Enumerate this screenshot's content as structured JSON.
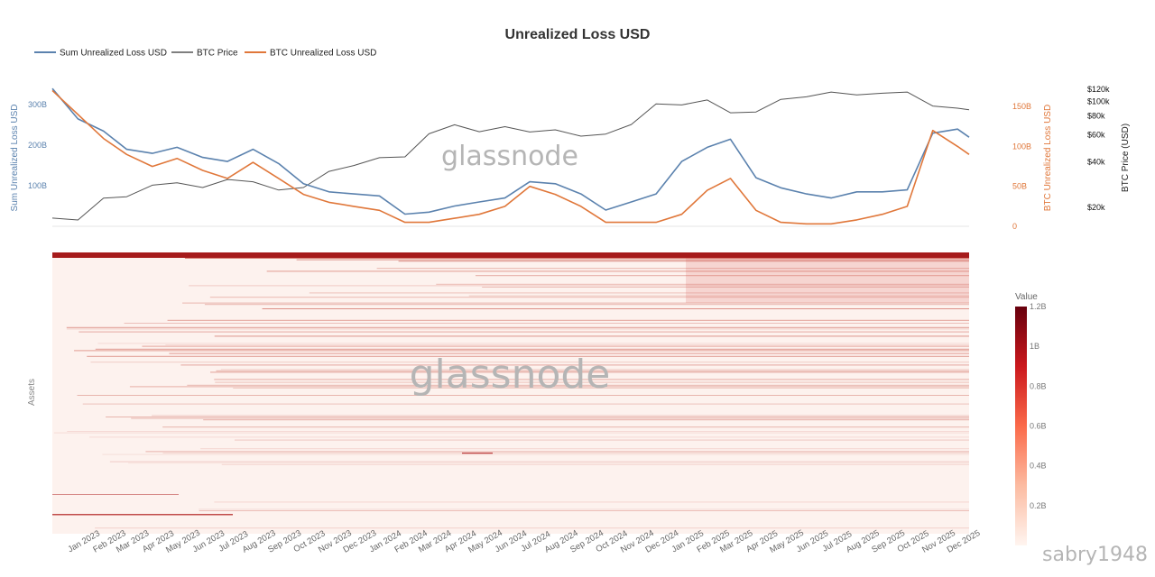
{
  "chart_data": {
    "type": "line",
    "title": "Unrealized Loss USD",
    "x": [
      "2022-12-01",
      "2023-01-01",
      "2023-02-01",
      "2023-03-01",
      "2023-04-01",
      "2023-05-01",
      "2023-06-01",
      "2023-07-01",
      "2023-08-01",
      "2023-09-01",
      "2023-10-01",
      "2023-11-01",
      "2023-12-01",
      "2024-01-01",
      "2024-02-01",
      "2024-03-01",
      "2024-04-01",
      "2024-05-01",
      "2024-06-01",
      "2024-07-01",
      "2024-08-01",
      "2024-09-01",
      "2024-10-01",
      "2024-11-01",
      "2024-12-01",
      "2025-01-01",
      "2025-02-01",
      "2025-03-01",
      "2025-04-01",
      "2025-05-01",
      "2025-06-01",
      "2025-07-01",
      "2025-08-01",
      "2025-09-01",
      "2025-10-01",
      "2025-11-01",
      "2025-12-01",
      "2025-12-15"
    ],
    "x_tick_labels": [
      "Jan 2023",
      "Feb 2023",
      "Mar 2023",
      "Apr 2023",
      "May 2023",
      "Jun 2023",
      "Jul 2023",
      "Aug 2023",
      "Sep 2023",
      "Oct 2023",
      "Nov 2023",
      "Dec 2023",
      "Jan 2024",
      "Feb 2024",
      "Mar 2024",
      "Apr 2024",
      "May 2024",
      "Jun 2024",
      "Jul 2024",
      "Aug 2024",
      "Sep 2024",
      "Oct 2024",
      "Nov 2024",
      "Dec 2024",
      "Jan 2025",
      "Feb 2025",
      "Mar 2025",
      "Apr 2025",
      "May 2025",
      "Jun 2025",
      "Jul 2025",
      "Aug 2025",
      "Sep 2025",
      "Oct 2025",
      "Nov 2025",
      "Dec 2025"
    ],
    "series": [
      {
        "name": "Sum Unrealized Loss USD",
        "axis": "left",
        "color": "#5b82ae",
        "values": [
          340,
          265,
          235,
          190,
          180,
          195,
          170,
          160,
          190,
          155,
          105,
          85,
          80,
          75,
          30,
          35,
          50,
          60,
          70,
          110,
          105,
          80,
          40,
          60,
          80,
          160,
          195,
          215,
          120,
          95,
          80,
          70,
          85,
          85,
          90,
          230,
          240,
          220
        ]
      },
      {
        "name": "BTC Price",
        "axis": "right2",
        "color": "#555555",
        "values": [
          17000,
          16500,
          23000,
          23500,
          28000,
          29000,
          27000,
          30500,
          29500,
          26000,
          27000,
          34500,
          37700,
          42500,
          43000,
          61000,
          70000,
          63000,
          68000,
          62700,
          64800,
          58900,
          60800,
          70300,
          96000,
          94500,
          102000,
          84000,
          85000,
          103000,
          107000,
          115000,
          110000,
          113000,
          115000,
          93000,
          90000,
          88000
        ]
      },
      {
        "name": "BTC Unrealized Loss USD",
        "axis": "right1",
        "color": "#e0773a",
        "values": [
          170,
          140,
          110,
          90,
          75,
          85,
          70,
          60,
          80,
          60,
          40,
          30,
          25,
          20,
          5,
          5,
          10,
          15,
          25,
          50,
          40,
          25,
          5,
          5,
          5,
          15,
          45,
          60,
          20,
          5,
          3,
          3,
          8,
          15,
          25,
          120,
          100,
          90
        ]
      }
    ],
    "left_axis": {
      "label": "Sum Unrealized Loss USD",
      "ticks": [
        "100B",
        "200B",
        "300B"
      ],
      "range": [
        0,
        345
      ],
      "color": "#5b82ae"
    },
    "right_axis_1": {
      "label": "BTC Unrealized Loss USD",
      "ticks": [
        "0",
        "50B",
        "100B",
        "150B"
      ],
      "range": [
        0,
        175
      ],
      "color": "#e0773a"
    },
    "right_axis_2": {
      "label": "BTC Price (USD)",
      "ticks": [
        "$20k",
        "$40k",
        "$60k",
        "$80k",
        "$100k",
        "$120k"
      ],
      "scale": "log",
      "range": [
        15000,
        125000
      ]
    },
    "heatmap": {
      "y_label": "Assets",
      "colorbar_title": "Value",
      "colorbar_ticks": [
        "0.2B",
        "0.4B",
        "0.6B",
        "0.8B",
        "1B",
        "1.2B"
      ],
      "range": [
        0,
        1.2
      ]
    },
    "legend_position": "top-left",
    "watermark": "glassnode",
    "footer_watermark": "sabry1948"
  }
}
